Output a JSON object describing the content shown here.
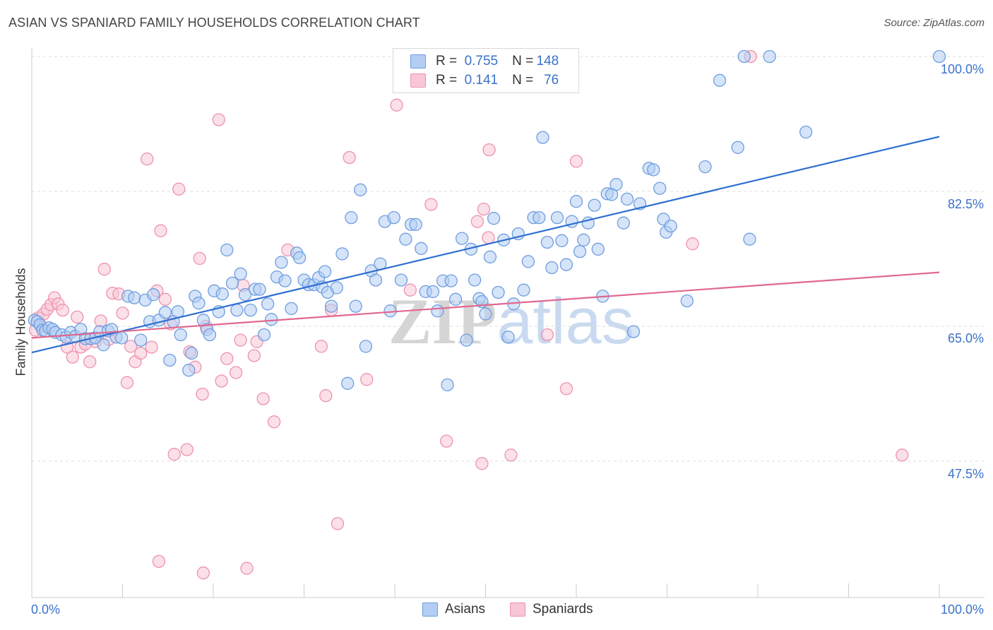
{
  "title": "ASIAN VS SPANIARD FAMILY HOUSEHOLDS CORRELATION CHART",
  "source": "Source: ZipAtlas.com",
  "watermark": {
    "part1": "ZIP",
    "part2": "atlas"
  },
  "legend": {
    "rows": [
      {
        "r_label": "R = ",
        "r_value": "0.755",
        "n_label": "N = ",
        "n_value": "148"
      },
      {
        "r_label": "R = ",
        "r_value": "0.141",
        "n_label": "N = ",
        "n_value": "76"
      }
    ]
  },
  "colors": {
    "asians_fill": "#b3cdf3",
    "asians_stroke": "#6f9ee0",
    "asians_line": "#2f6fd0",
    "spaniards_fill": "#f8c6d6",
    "spaniards_stroke": "#ee92ae",
    "spaniards_line": "#e0688f",
    "tick_label": "#3a72c8",
    "grid": "#dddddd"
  },
  "chart_data": {
    "type": "scatter",
    "title": "ASIAN VS SPANIARD FAMILY HOUSEHOLDS CORRELATION CHART",
    "xlabel": "",
    "ylabel": "Family Households",
    "xlim": [
      0,
      100
    ],
    "ylim": [
      32,
      100
    ],
    "x_tick_labels": [
      "0.0%",
      "100.0%"
    ],
    "y_ticks": [
      47.5,
      65.0,
      82.5,
      100.0
    ],
    "y_tick_labels": [
      "47.5%",
      "65.0%",
      "82.5%",
      "100.0%"
    ],
    "grid": "horizontal dashed",
    "legend_placement": "top-center and bottom",
    "series": [
      {
        "name": "Asians",
        "R": 0.755,
        "N": 148,
        "trend": {
          "x": [
            0,
            100
          ],
          "y": [
            61.6,
            89.6
          ]
        },
        "points": [
          [
            0.3,
            65.8
          ],
          [
            0.6,
            65.6
          ],
          [
            0.9,
            65.2
          ],
          [
            1.2,
            64.5
          ],
          [
            1.5,
            64.4
          ],
          [
            1.9,
            64.8
          ],
          [
            2.3,
            64.6
          ],
          [
            2.6,
            64.2
          ],
          [
            3.3,
            63.9
          ],
          [
            3.8,
            63.6
          ],
          [
            4.3,
            64.2
          ],
          [
            4.8,
            63.7
          ],
          [
            5.4,
            64.6
          ],
          [
            5.9,
            63.4
          ],
          [
            6.5,
            63.4
          ],
          [
            7.0,
            63.5
          ],
          [
            7.5,
            64.3
          ],
          [
            7.9,
            62.6
          ],
          [
            8.4,
            64.4
          ],
          [
            8.8,
            64.6
          ],
          [
            9.3,
            63.6
          ],
          [
            9.9,
            63.5
          ],
          [
            10.6,
            68.9
          ],
          [
            11.3,
            68.7
          ],
          [
            12.0,
            63.2
          ],
          [
            12.5,
            68.4
          ],
          [
            13.0,
            65.6
          ],
          [
            13.4,
            69.1
          ],
          [
            14.0,
            65.8
          ],
          [
            14.7,
            66.8
          ],
          [
            15.2,
            60.6
          ],
          [
            15.6,
            65.6
          ],
          [
            16.1,
            66.9
          ],
          [
            16.4,
            63.9
          ],
          [
            17.3,
            59.3
          ],
          [
            17.6,
            61.5
          ],
          [
            18.0,
            68.9
          ],
          [
            18.4,
            68.0
          ],
          [
            18.9,
            65.8
          ],
          [
            19.3,
            64.6
          ],
          [
            19.6,
            63.9
          ],
          [
            20.1,
            69.6
          ],
          [
            20.6,
            66.9
          ],
          [
            21.0,
            69.2
          ],
          [
            21.5,
            74.9
          ],
          [
            22.1,
            70.6
          ],
          [
            22.6,
            67.1
          ],
          [
            23.0,
            71.8
          ],
          [
            23.5,
            69.1
          ],
          [
            24.1,
            67.1
          ],
          [
            24.6,
            69.8
          ],
          [
            25.1,
            69.8
          ],
          [
            25.6,
            63.9
          ],
          [
            26.0,
            67.9
          ],
          [
            26.4,
            65.9
          ],
          [
            27.0,
            71.4
          ],
          [
            27.5,
            73.3
          ],
          [
            27.9,
            70.9
          ],
          [
            28.6,
            67.3
          ],
          [
            29.2,
            74.5
          ],
          [
            29.5,
            73.9
          ],
          [
            30.0,
            71.0
          ],
          [
            30.5,
            70.4
          ],
          [
            31.1,
            70.4
          ],
          [
            31.6,
            71.3
          ],
          [
            32.0,
            70.1
          ],
          [
            32.3,
            72.1
          ],
          [
            32.6,
            69.4
          ],
          [
            33.0,
            67.6
          ],
          [
            33.6,
            70.0
          ],
          [
            34.2,
            74.4
          ],
          [
            34.8,
            57.6
          ],
          [
            35.2,
            79.1
          ],
          [
            35.7,
            67.6
          ],
          [
            36.2,
            82.7
          ],
          [
            36.8,
            62.4
          ],
          [
            37.4,
            72.2
          ],
          [
            37.9,
            71.0
          ],
          [
            38.4,
            73.1
          ],
          [
            38.9,
            78.6
          ],
          [
            39.5,
            67.0
          ],
          [
            39.9,
            79.1
          ],
          [
            40.7,
            71.0
          ],
          [
            41.2,
            76.3
          ],
          [
            41.8,
            78.2
          ],
          [
            42.3,
            78.2
          ],
          [
            42.9,
            75.1
          ],
          [
            43.4,
            69.5
          ],
          [
            44.2,
            69.5
          ],
          [
            44.7,
            67.0
          ],
          [
            45.3,
            70.9
          ],
          [
            45.8,
            57.4
          ],
          [
            46.2,
            70.9
          ],
          [
            46.7,
            68.5
          ],
          [
            47.4,
            76.4
          ],
          [
            47.9,
            63.2
          ],
          [
            48.4,
            75.0
          ],
          [
            48.8,
            71.0
          ],
          [
            49.3,
            68.6
          ],
          [
            49.6,
            68.2
          ],
          [
            50.0,
            66.6
          ],
          [
            50.5,
            74.0
          ],
          [
            50.9,
            79.0
          ],
          [
            51.4,
            69.4
          ],
          [
            52.0,
            76.2
          ],
          [
            52.5,
            63.6
          ],
          [
            53.1,
            67.9
          ],
          [
            53.6,
            77.0
          ],
          [
            54.2,
            69.7
          ],
          [
            54.7,
            73.4
          ],
          [
            55.3,
            79.1
          ],
          [
            55.9,
            79.1
          ],
          [
            56.3,
            89.5
          ],
          [
            56.8,
            75.9
          ],
          [
            57.3,
            72.6
          ],
          [
            57.9,
            79.1
          ],
          [
            58.4,
            76.1
          ],
          [
            58.9,
            73.0
          ],
          [
            59.5,
            78.6
          ],
          [
            60.0,
            81.2
          ],
          [
            60.4,
            74.7
          ],
          [
            60.8,
            76.2
          ],
          [
            61.3,
            78.4
          ],
          [
            62.0,
            80.7
          ],
          [
            62.4,
            75.0
          ],
          [
            62.9,
            68.9
          ],
          [
            63.4,
            82.2
          ],
          [
            63.9,
            82.1
          ],
          [
            64.4,
            83.4
          ],
          [
            65.2,
            78.4
          ],
          [
            65.6,
            81.5
          ],
          [
            66.3,
            64.3
          ],
          [
            67.0,
            80.9
          ],
          [
            68.0,
            85.5
          ],
          [
            68.5,
            85.3
          ],
          [
            69.2,
            82.9
          ],
          [
            69.6,
            78.9
          ],
          [
            69.9,
            77.2
          ],
          [
            70.4,
            78.0
          ],
          [
            72.2,
            68.3
          ],
          [
            74.2,
            85.7
          ],
          [
            75.8,
            96.9
          ],
          [
            77.8,
            88.2
          ],
          [
            78.5,
            100.0
          ],
          [
            81.3,
            100.0
          ],
          [
            79.1,
            76.3
          ],
          [
            85.3,
            90.2
          ],
          [
            100.0,
            100.0
          ]
        ]
      },
      {
        "name": "Spaniards",
        "R": 0.141,
        "N": 76,
        "trend": {
          "x": [
            0,
            100
          ],
          "y": [
            63.5,
            72.0
          ]
        },
        "points": [
          [
            0.4,
            64.5
          ],
          [
            0.7,
            66.1
          ],
          [
            1.0,
            65.0
          ],
          [
            1.3,
            66.6
          ],
          [
            1.7,
            67.2
          ],
          [
            2.1,
            67.8
          ],
          [
            2.5,
            68.7
          ],
          [
            2.9,
            67.9
          ],
          [
            3.4,
            67.1
          ],
          [
            3.9,
            62.3
          ],
          [
            4.5,
            61.0
          ],
          [
            5.0,
            66.2
          ],
          [
            5.4,
            62.3
          ],
          [
            5.9,
            62.7
          ],
          [
            6.4,
            60.4
          ],
          [
            7.0,
            63.0
          ],
          [
            7.6,
            65.7
          ],
          [
            8.0,
            72.4
          ],
          [
            8.5,
            63.3
          ],
          [
            8.9,
            69.3
          ],
          [
            9.6,
            69.2
          ],
          [
            10.0,
            66.7
          ],
          [
            10.5,
            57.7
          ],
          [
            10.9,
            62.4
          ],
          [
            11.4,
            60.4
          ],
          [
            12.0,
            61.5
          ],
          [
            12.7,
            86.7
          ],
          [
            13.2,
            62.3
          ],
          [
            13.8,
            69.6
          ],
          [
            14.2,
            77.4
          ],
          [
            14.7,
            68.5
          ],
          [
            15.3,
            65.3
          ],
          [
            15.7,
            48.4
          ],
          [
            16.2,
            82.8
          ],
          [
            17.1,
            49.0
          ],
          [
            17.4,
            61.7
          ],
          [
            18.0,
            59.7
          ],
          [
            18.5,
            73.8
          ],
          [
            18.8,
            56.2
          ],
          [
            19.2,
            65.0
          ],
          [
            20.6,
            91.8
          ],
          [
            20.9,
            57.9
          ],
          [
            21.5,
            60.8
          ],
          [
            22.5,
            59.0
          ],
          [
            23.0,
            63.2
          ],
          [
            23.3,
            70.3
          ],
          [
            23.7,
            33.6
          ],
          [
            24.5,
            61.2
          ],
          [
            24.8,
            63.0
          ],
          [
            25.5,
            55.6
          ],
          [
            26.7,
            52.6
          ],
          [
            28.2,
            74.9
          ],
          [
            32.4,
            56.0
          ],
          [
            33.0,
            67.1
          ],
          [
            31.9,
            62.4
          ],
          [
            18.9,
            33.0
          ],
          [
            33.7,
            39.4
          ],
          [
            35.0,
            86.9
          ],
          [
            36.9,
            58.1
          ],
          [
            40.2,
            93.7
          ],
          [
            41.7,
            69.7
          ],
          [
            44.0,
            80.8
          ],
          [
            45.7,
            50.1
          ],
          [
            49.1,
            78.6
          ],
          [
            49.8,
            80.2
          ],
          [
            50.3,
            76.5
          ],
          [
            49.6,
            47.2
          ],
          [
            50.4,
            87.9
          ],
          [
            52.8,
            48.3
          ],
          [
            56.8,
            63.9
          ],
          [
            58.9,
            56.9
          ],
          [
            60.0,
            86.4
          ],
          [
            72.8,
            75.7
          ],
          [
            79.2,
            100.0
          ],
          [
            95.9,
            48.3
          ],
          [
            14.0,
            34.5
          ]
        ]
      }
    ]
  },
  "bottom_legend": {
    "asians": "Asians",
    "spaniards": "Spaniards"
  },
  "x_axis": {
    "left_label": "0.0%",
    "right_label": "100.0%"
  },
  "y_axis": {
    "label": "Family Households"
  }
}
